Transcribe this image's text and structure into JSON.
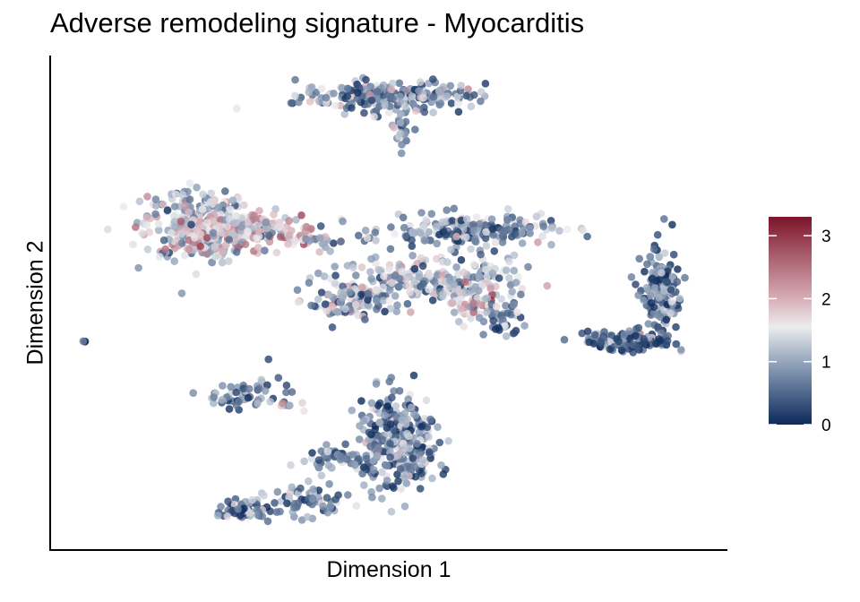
{
  "chart_data": {
    "type": "scatter",
    "title": "Adverse remodeling signature - Myocarditis",
    "xlabel": "Dimension 1",
    "ylabel": "Dimension 2",
    "grid": false,
    "axis_ticks": false,
    "colorbar": {
      "ticks": [
        "0",
        "1",
        "2",
        "3"
      ],
      "range": [
        0,
        3.3
      ],
      "colors": [
        "#0c2a5a",
        "#8a9cb6",
        "#ececee",
        "#d4a8b2",
        "#7c1529"
      ],
      "placement": "right"
    },
    "clusters": [
      {
        "x": 11,
        "y": 90,
        "n": 230,
        "sx": 7.5,
        "sy": 2.2,
        "mean": 0.8
      },
      {
        "x": 12.5,
        "y": 82,
        "n": 25,
        "sx": 0.7,
        "sy": 4,
        "mean": 0.8
      },
      {
        "x": -21,
        "y": 53,
        "n": 300,
        "sx": 4.2,
        "sy": 5,
        "mean": 1.3
      },
      {
        "x": -13,
        "y": 51,
        "n": 200,
        "sx": 6,
        "sy": 2.8,
        "mean": 1.7
      },
      {
        "x": -1,
        "y": 48,
        "n": 14,
        "sx": 1.8,
        "sy": 1.2,
        "mean": 1.2
      },
      {
        "x": 24,
        "y": 51,
        "n": 200,
        "sx": 7,
        "sy": 2.2,
        "mean": 0.8
      },
      {
        "x": 15,
        "y": 36,
        "n": 200,
        "sx": 7.5,
        "sy": 3.5,
        "mean": 1.1
      },
      {
        "x": 27,
        "y": 37,
        "n": 60,
        "sx": 3,
        "sy": 4,
        "mean": 1.3
      },
      {
        "x": 24,
        "y": 30,
        "n": 45,
        "sx": 2,
        "sy": 2.5,
        "mean": 1.6
      },
      {
        "x": 4,
        "y": 30,
        "n": 80,
        "sx": 3.5,
        "sy": 2.5,
        "mean": 1.0
      },
      {
        "x": 29,
        "y": 25,
        "n": 40,
        "sx": 1.5,
        "sy": 2.5,
        "mean": 0.7
      },
      {
        "x": 55,
        "y": 33,
        "n": 150,
        "sx": 1.6,
        "sy": 6,
        "mean": 0.5
      },
      {
        "x": 50,
        "y": 19,
        "n": 120,
        "sx": 3.5,
        "sy": 1.5,
        "mean": 0.5
      },
      {
        "x": 12,
        "y": -10,
        "n": 280,
        "sx": 3.2,
        "sy": 7,
        "mean": 0.7
      },
      {
        "x": 4,
        "y": -15,
        "n": 70,
        "sx": 3.5,
        "sy": 1.8,
        "mean": 0.7
      },
      {
        "x": -13,
        "y": -30,
        "n": 70,
        "sx": 2.5,
        "sy": 1.2,
        "mean": 0.6
      },
      {
        "x": -3,
        "y": -27,
        "n": 70,
        "sx": 3,
        "sy": 2.5,
        "mean": 0.7
      },
      {
        "x": -14,
        "y": 3,
        "n": 50,
        "sx": 2.5,
        "sy": 2.5,
        "mean": 0.7
      },
      {
        "x": -7,
        "y": 3,
        "n": 18,
        "sx": 1.5,
        "sy": 3,
        "mean": 1.0
      },
      {
        "x": -39.5,
        "y": 19,
        "n": 3,
        "sx": 0.2,
        "sy": 0.2,
        "mean": 0.5
      }
    ]
  }
}
